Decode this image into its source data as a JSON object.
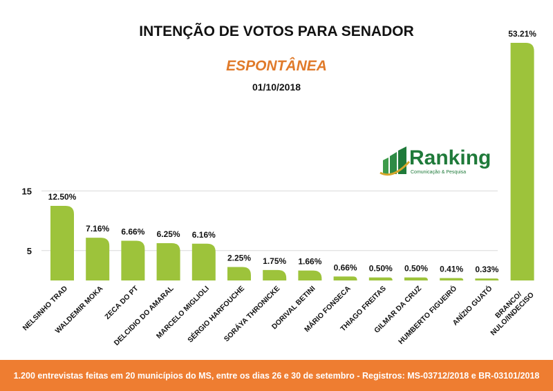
{
  "header": {
    "title": "INTENÇÃO DE VOTOS PARA SENADOR",
    "subtitle": "ESPONTÂNEA",
    "date": "01/10/2018"
  },
  "logo": {
    "name": "Ranking",
    "tagline": "Comunicação & Pesquisa"
  },
  "footer": {
    "text": "1.200 entrevistas feitas em 20 municípios do MS, entre os dias 26 e 30 de setembro - Registros: MS-03712/2018 e BR-03101/2018"
  },
  "chart_data": {
    "type": "bar",
    "categories": [
      "NELSINHO TRAD",
      "WALDEMIR MOKA",
      "ZECA DO PT",
      "DELCIDIO DO AMARAL",
      "MARCELO MIGLIOLI",
      "SÉRGIO HARFOUCHE",
      "SORÁYA THRONICKE",
      "DORIVAL BETINI",
      "MÁRIO FONSECA",
      "THIAGO FREITAS",
      "GILMAR DA CRUZ",
      "HUMBERTO FIGUEIRÓ",
      "ANÍZIO GUATÓ",
      "BRANCO/ NULO/INDECISO"
    ],
    "values": [
      12.5,
      7.16,
      6.66,
      6.25,
      6.16,
      2.25,
      1.75,
      1.66,
      0.66,
      0.5,
      0.5,
      0.41,
      0.33,
      53.21
    ],
    "data_labels": [
      "12.50%",
      "7.16%",
      "6.66%",
      "6.25%",
      "6.16%",
      "2.25%",
      "1.75%",
      "1.66%",
      "0.66%",
      "0.50%",
      "0.50%",
      "0.41%",
      "0.33%",
      "53.21%"
    ],
    "yticks": [
      5,
      15
    ],
    "grid": true,
    "colors": {
      "bar": "#9dc33b",
      "grid": "#d9d9d9"
    }
  }
}
